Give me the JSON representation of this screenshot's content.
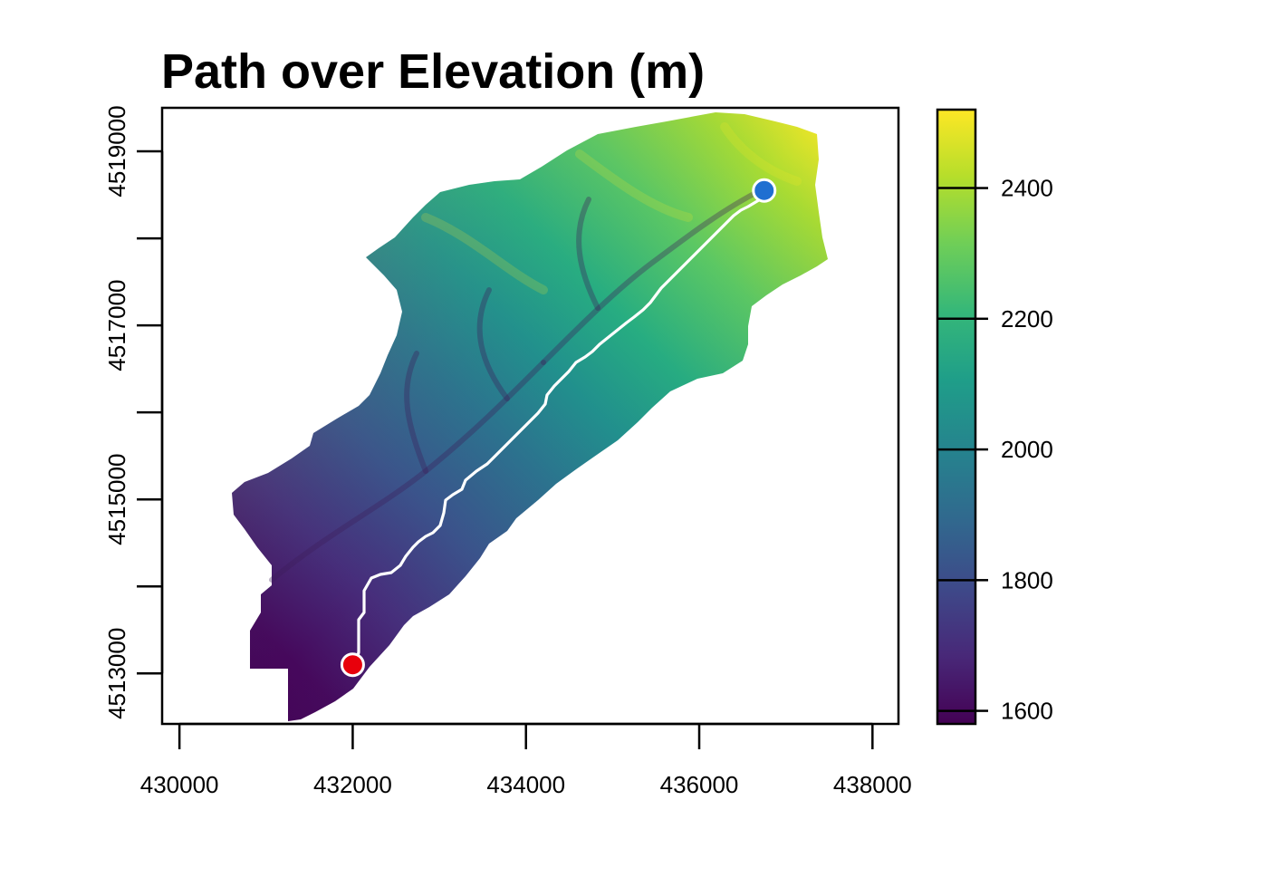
{
  "title": "Path over Elevation (m)",
  "map": {
    "x_range": [
      429800,
      438300
    ],
    "y_range": [
      4512420,
      4519500
    ],
    "x_ticks": [
      430000,
      432000,
      434000,
      436000,
      438000
    ],
    "x_tick_labels": [
      "430000",
      "432000",
      "434000",
      "436000",
      "438000"
    ],
    "y_ticks": [
      4513000,
      4515000,
      4517000,
      4519000
    ],
    "y_tick_labels": [
      "4513000",
      "4515000",
      "4517000",
      "4519000"
    ],
    "y_minor_ticks": [
      4514000,
      4516000,
      4518000
    ],
    "start_point": {
      "x": 432000,
      "y": 4513100,
      "color": "#e8000b"
    },
    "end_point": {
      "x": 436750,
      "y": 4518550,
      "color": "#1f6fd1"
    },
    "path_color": "#ffffff"
  },
  "legend": {
    "min": 1580,
    "max": 2520,
    "ticks": [
      1600,
      1800,
      2000,
      2200,
      2400
    ],
    "tick_labels": [
      "1600",
      "1800",
      "2000",
      "2200",
      "2400"
    ],
    "colors": [
      "#440154",
      "#482878",
      "#3e4989",
      "#31688e",
      "#26828e",
      "#1f9e89",
      "#35b779",
      "#6ece58",
      "#b5de2b",
      "#fde725"
    ]
  }
}
